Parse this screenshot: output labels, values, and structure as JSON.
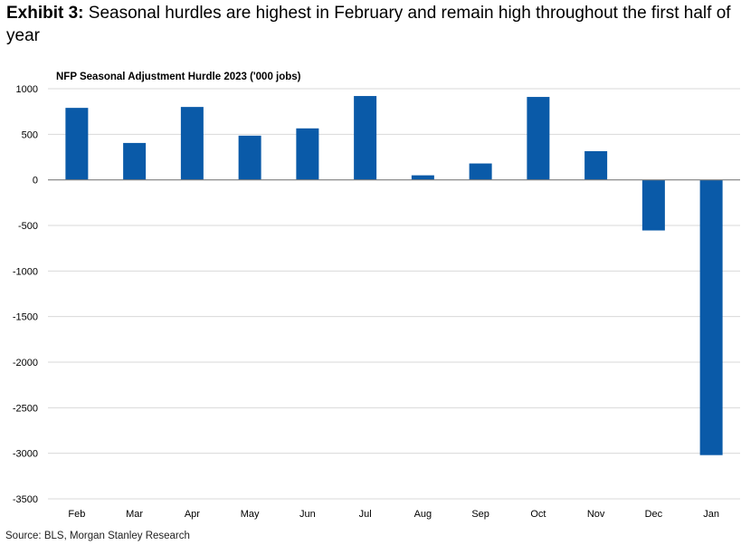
{
  "header": {
    "exhibit_label": "Exhibit 3:",
    "headline": "Seasonal hurdles are highest in February and remain high throughout the first half of year"
  },
  "chart_data": {
    "type": "bar",
    "title": "NFP Seasonal Adjustment Hurdle 2023 ('000 jobs)",
    "xlabel": "",
    "ylabel": "",
    "categories": [
      "Feb",
      "Mar",
      "Apr",
      "May",
      "Jun",
      "Jul",
      "Aug",
      "Sep",
      "Oct",
      "Nov",
      "Dec",
      "Jan"
    ],
    "values": [
      790,
      405,
      800,
      485,
      565,
      920,
      50,
      180,
      910,
      315,
      -555,
      -3020
    ],
    "ylim": [
      -3500,
      1000
    ],
    "yticks": [
      1000,
      500,
      0,
      -500,
      -1000,
      -1500,
      -2000,
      -2500,
      -3000,
      -3500
    ],
    "bar_color": "#0a5aa8",
    "grid": true,
    "legend": "none"
  },
  "footer": {
    "source": "Source: BLS, Morgan Stanley Research"
  }
}
